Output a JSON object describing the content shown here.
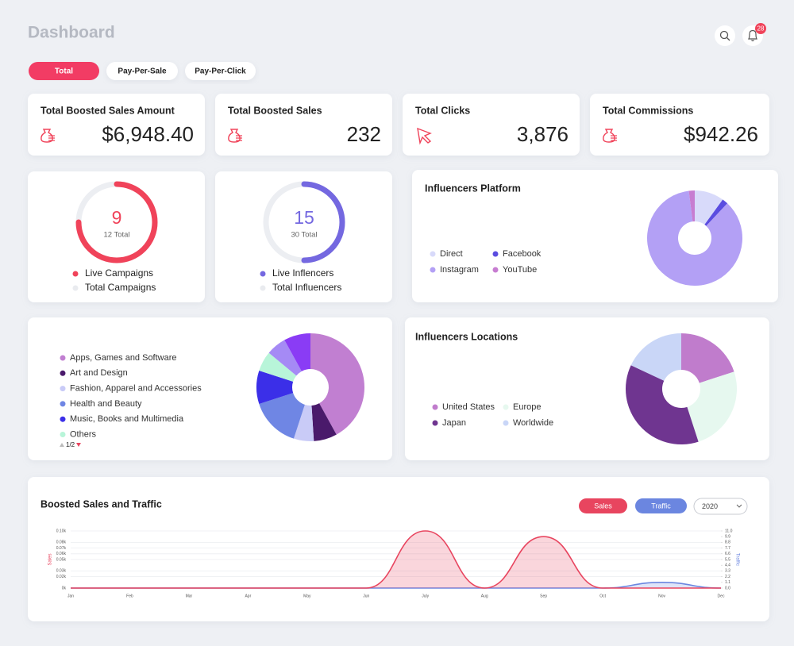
{
  "header": {
    "title": "Dashboard",
    "notifications": "28"
  },
  "tabs": [
    "Total",
    "Pay-Per-Sale",
    "Pay-Per-Click"
  ],
  "stats": [
    {
      "label": "Total Boosted Sales Amount",
      "value": "$6,948.40"
    },
    {
      "label": "Total Boosted Sales",
      "value": "232"
    },
    {
      "label": "Total Clicks",
      "value": "3,876"
    },
    {
      "label": "Total Commissions",
      "value": "$942.26"
    }
  ],
  "rings": [
    {
      "value": 9,
      "total": 12,
      "total_label": "12 Total",
      "color": "#f0435a",
      "legend": [
        "Live Campaigns",
        "Total Campaigns"
      ]
    },
    {
      "value": 15,
      "total": 30,
      "total_label": "30 Total",
      "color": "#7468e0",
      "legend": [
        "Live Inflencers",
        "Total Influencers"
      ]
    }
  ],
  "platform": {
    "type": "pie",
    "title": "Influencers Platform",
    "categories": [
      "Direct",
      "Facebook",
      "Instagram",
      "YouTube"
    ],
    "values": [
      10,
      2,
      86,
      2
    ],
    "colors": [
      "#d8dafa",
      "#5b4de0",
      "#b3a0f5",
      "#c77dd1"
    ]
  },
  "industries": {
    "type": "pie",
    "categories": [
      "Apps, Games and Software",
      "Art and Design",
      "Fashion, Apparel and Accessories",
      "Health and Beauty",
      "Music, Books and Multimedia",
      "Others",
      null,
      null
    ],
    "values": [
      42,
      7,
      6,
      15,
      10,
      6,
      6,
      8
    ],
    "colors": [
      "#c17fd1",
      "#4a1a6b",
      "#c9cbf7",
      "#6f86e4",
      "#3b2fe8",
      "#b8f5d9",
      "#a58af5",
      "#8a3cf5"
    ],
    "page": "1/2"
  },
  "locations": {
    "type": "pie",
    "title": "Influencers Locations",
    "categories": [
      "United States",
      "Europe",
      "Japan",
      "Worldwide"
    ],
    "values": [
      20,
      25,
      37,
      18
    ],
    "colors": [
      "#c07ccc",
      "#e6f8ef",
      "#6f3590",
      "#c9d6f7"
    ]
  },
  "sales_chart": {
    "type": "line",
    "title": "Boosted Sales and Traffic",
    "year": "2020",
    "categories": [
      "Jan",
      "Feb",
      "Mar",
      "Apr",
      "May",
      "Jun",
      "July",
      "Aug",
      "Sep",
      "Oct",
      "Nov",
      "Dec"
    ],
    "series": [
      {
        "name": "Sales",
        "color": "#e8455f",
        "values": [
          0,
          0,
          0,
          0,
          0,
          0,
          0.1,
          0,
          0.09,
          0,
          0,
          0
        ]
      },
      {
        "name": "Traffic",
        "color": "#6b86e0",
        "axis": "y2",
        "values": [
          0,
          0,
          0,
          0,
          0,
          0,
          0,
          0,
          0,
          0,
          1.1,
          0
        ]
      }
    ],
    "ylabel": "Sales",
    "y2label": "Traffic",
    "ylim": [
      0,
      0.1
    ],
    "yticks": [
      {
        "value": 0,
        "label": "0k"
      },
      {
        "value": 0.02,
        "label": "0.02k"
      },
      {
        "value": 0.03,
        "label": "0.03k"
      },
      {
        "value": 0.05,
        "label": "0.05k"
      },
      {
        "value": 0.06,
        "label": "0.06k"
      },
      {
        "value": 0.07,
        "label": "0.07k"
      },
      {
        "value": 0.08,
        "label": "0.08k"
      },
      {
        "value": 0.1,
        "label": "0.10k"
      }
    ],
    "y2lim": [
      0,
      11
    ],
    "y2ticks": [
      {
        "value": 0,
        "label": "0.0"
      },
      1.1,
      2.2,
      3.3,
      4.4,
      5.5,
      6.6,
      7.7,
      8.8,
      9.9,
      {
        "value": 11,
        "label": "11.0"
      }
    ]
  }
}
